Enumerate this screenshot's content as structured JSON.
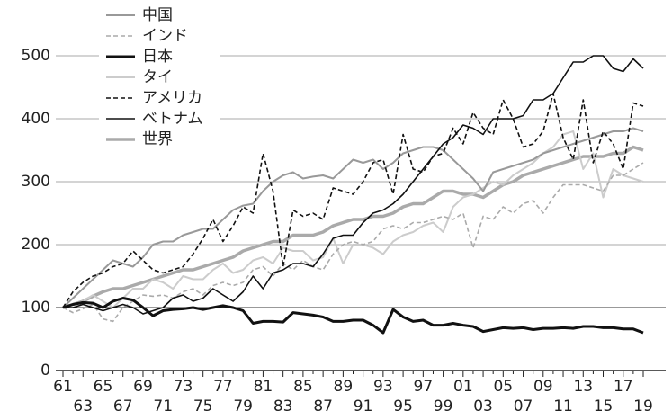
{
  "chart_data": {
    "type": "line",
    "categories": [
      "61",
      null,
      "63",
      null,
      "65",
      null,
      "67",
      null,
      "69",
      null,
      "71",
      null,
      "73",
      null,
      "75",
      null,
      "77",
      null,
      "79",
      null,
      "81",
      null,
      "83",
      null,
      "85",
      null,
      "87",
      null,
      "89",
      null,
      "91",
      null,
      "93",
      null,
      "95",
      null,
      "97",
      null,
      "99",
      null,
      "01",
      null,
      "03",
      null,
      "05",
      null,
      "07",
      null,
      "09",
      null,
      "11",
      null,
      "13",
      null,
      "15",
      null,
      "17",
      null,
      "19"
    ],
    "ylim": [
      0,
      540
    ],
    "yticks": [
      0,
      100,
      200,
      300,
      400,
      500
    ],
    "grid": true,
    "legend": "top-left",
    "series": [
      {
        "name": "中国",
        "color": "#999999",
        "width": 2,
        "dash": "none",
        "values": [
          100,
          115,
          130,
          145,
          160,
          175,
          170,
          165,
          180,
          200,
          205,
          205,
          215,
          220,
          225,
          225,
          240,
          255,
          262,
          265,
          285,
          300,
          310,
          315,
          305,
          308,
          310,
          305,
          320,
          335,
          330,
          335,
          320,
          330,
          345,
          350,
          355,
          355,
          350,
          335,
          320,
          305,
          285,
          315,
          320,
          325,
          330,
          335,
          345,
          350,
          355,
          360,
          365,
          370,
          375,
          380,
          380,
          385,
          380
        ]
      },
      {
        "name": "インド",
        "color": "#aaaaaa",
        "width": 1.6,
        "dash": "5,3",
        "values": [
          100,
          92,
          98,
          105,
          82,
          78,
          100,
          110,
          120,
          118,
          120,
          115,
          125,
          130,
          120,
          135,
          140,
          135,
          140,
          160,
          165,
          150,
          170,
          160,
          175,
          165,
          160,
          185,
          200,
          205,
          200,
          205,
          225,
          230,
          225,
          235,
          235,
          240,
          245,
          240,
          250,
          195,
          245,
          240,
          260,
          250,
          265,
          270,
          250,
          275,
          295,
          295,
          295,
          290,
          285,
          310,
          310,
          320,
          330
        ]
      },
      {
        "name": "日本",
        "color": "#111111",
        "width": 3,
        "dash": "none",
        "values": [
          100,
          105,
          108,
          107,
          100,
          110,
          115,
          112,
          100,
          87,
          95,
          97,
          98,
          100,
          97,
          100,
          103,
          100,
          95,
          75,
          78,
          78,
          77,
          92,
          90,
          88,
          85,
          78,
          78,
          80,
          80,
          72,
          60,
          97,
          85,
          78,
          80,
          72,
          72,
          75,
          72,
          70,
          62,
          65,
          68,
          67,
          68,
          65,
          67,
          67,
          68,
          67,
          70,
          70,
          68,
          68,
          66,
          66,
          60
        ]
      },
      {
        "name": "タイ",
        "color": "#cccccc",
        "width": 2,
        "dash": "none",
        "values": [
          100,
          105,
          110,
          120,
          110,
          100,
          115,
          130,
          130,
          145,
          140,
          130,
          150,
          145,
          145,
          160,
          170,
          155,
          160,
          175,
          180,
          170,
          195,
          190,
          190,
          175,
          180,
          210,
          170,
          200,
          200,
          195,
          185,
          205,
          215,
          220,
          230,
          235,
          220,
          260,
          275,
          280,
          290,
          300,
          295,
          310,
          320,
          330,
          345,
          355,
          375,
          380,
          320,
          345,
          275,
          320,
          310,
          305,
          300
        ]
      },
      {
        "name": "アメリカ",
        "color": "#111111",
        "width": 1.6,
        "dash": "5,3",
        "values": [
          100,
          125,
          140,
          150,
          155,
          165,
          170,
          190,
          175,
          160,
          155,
          160,
          165,
          185,
          210,
          240,
          205,
          230,
          260,
          250,
          345,
          285,
          165,
          255,
          245,
          250,
          240,
          290,
          285,
          280,
          300,
          330,
          335,
          280,
          375,
          320,
          315,
          340,
          345,
          385,
          360,
          410,
          385,
          375,
          430,
          400,
          355,
          360,
          380,
          440,
          370,
          335,
          430,
          330,
          380,
          360,
          320,
          425,
          420
        ]
      },
      {
        "name": "ベトナム",
        "color": "#111111",
        "width": 1.6,
        "dash": "none",
        "values": [
          100,
          100,
          105,
          100,
          95,
          100,
          105,
          100,
          90,
          95,
          100,
          115,
          120,
          110,
          115,
          130,
          120,
          110,
          125,
          150,
          130,
          155,
          160,
          170,
          170,
          165,
          185,
          210,
          215,
          215,
          235,
          250,
          255,
          265,
          280,
          300,
          320,
          340,
          360,
          370,
          390,
          385,
          375,
          400,
          400,
          400,
          405,
          430,
          430,
          440,
          465,
          490,
          490,
          500,
          500,
          480,
          475,
          495,
          480
        ]
      },
      {
        "name": "世界",
        "color": "#aaaaaa",
        "width": 3.5,
        "dash": "none",
        "values": [
          100,
          105,
          110,
          118,
          125,
          130,
          130,
          135,
          140,
          145,
          150,
          155,
          160,
          160,
          165,
          170,
          175,
          180,
          190,
          195,
          200,
          205,
          205,
          215,
          215,
          215,
          220,
          230,
          235,
          240,
          240,
          245,
          245,
          250,
          260,
          265,
          265,
          275,
          285,
          285,
          280,
          280,
          275,
          285,
          295,
          300,
          310,
          315,
          320,
          325,
          330,
          335,
          340,
          340,
          340,
          345,
          345,
          355,
          350
        ]
      }
    ]
  }
}
